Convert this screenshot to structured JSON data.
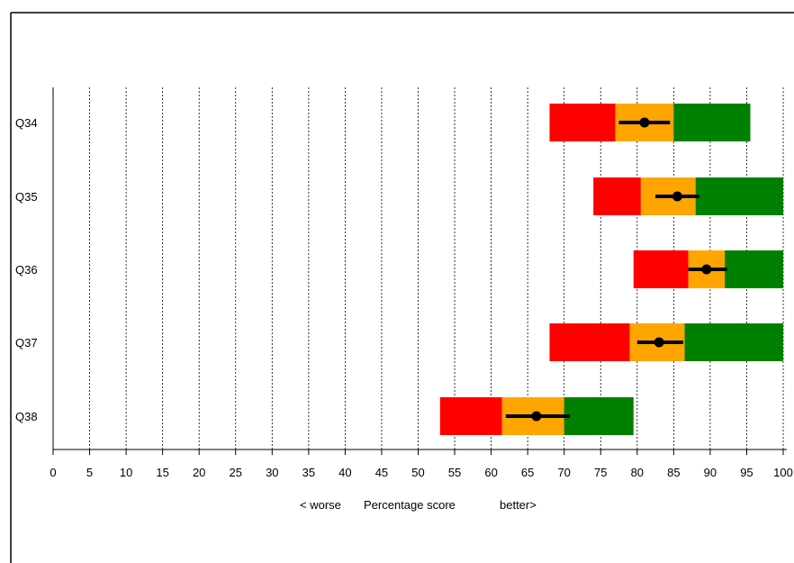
{
  "chart_data": {
    "type": "bar",
    "orientation": "horizontal",
    "subtype": "segmented range bars with point estimate and error bar",
    "categories": [
      "Q34",
      "Q35",
      "Q36",
      "Q37",
      "Q38"
    ],
    "x_ticks": [
      0,
      5,
      10,
      15,
      20,
      25,
      30,
      35,
      40,
      45,
      50,
      55,
      60,
      65,
      70,
      75,
      80,
      85,
      90,
      95,
      100
    ],
    "xlim": [
      0,
      100
    ],
    "grid": "vertical dotted lines at each tick",
    "x_axis_labels": {
      "left": "< worse",
      "center": "Percentage score",
      "right": "better>"
    },
    "segment_colors": {
      "low": "#ff0000",
      "mid": "#ffa500",
      "high": "#008000"
    },
    "rows": [
      {
        "label": "Q34",
        "red": [
          68,
          77
        ],
        "amber": [
          77,
          85
        ],
        "green": [
          85,
          95.5
        ],
        "point": 81,
        "ci": [
          77.5,
          84.5
        ]
      },
      {
        "label": "Q35",
        "red": [
          74,
          80.5
        ],
        "amber": [
          80.5,
          88
        ],
        "green": [
          88,
          100
        ],
        "point": 85.5,
        "ci": [
          82.5,
          88.5
        ]
      },
      {
        "label": "Q36",
        "red": [
          79.5,
          87
        ],
        "amber": [
          87,
          92
        ],
        "green": [
          92,
          100
        ],
        "point": 89.5,
        "ci": [
          87,
          92.3
        ]
      },
      {
        "label": "Q37",
        "red": [
          68,
          79
        ],
        "amber": [
          79,
          86.5
        ],
        "green": [
          86.5,
          100
        ],
        "point": 83,
        "ci": [
          80,
          86.3
        ]
      },
      {
        "label": "Q38",
        "red": [
          53,
          61.5
        ],
        "amber": [
          61.5,
          70
        ],
        "green": [
          70,
          79.5
        ],
        "point": 66.2,
        "ci": [
          62,
          70.8
        ]
      }
    ]
  }
}
